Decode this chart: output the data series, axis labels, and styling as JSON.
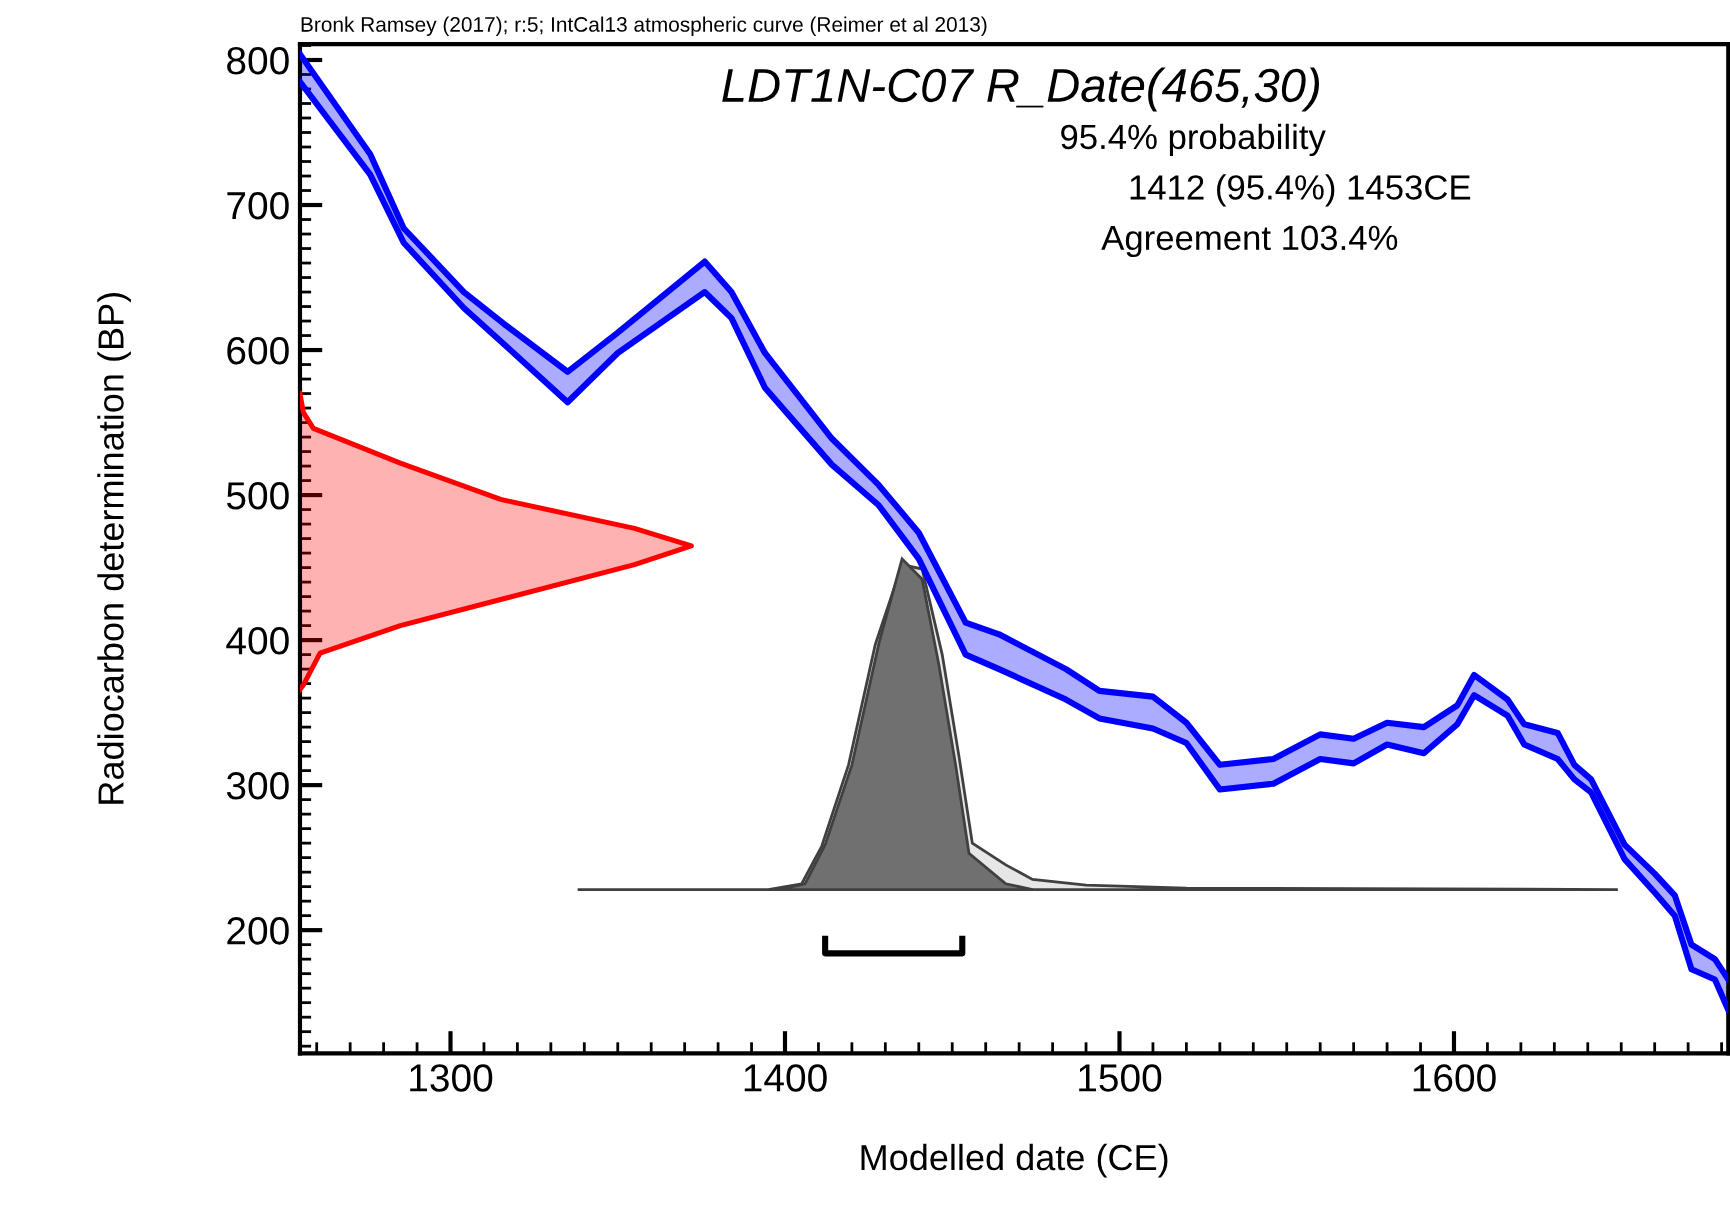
{
  "chart_data": {
    "type": "line",
    "title": "LDT1N-C07 R_Date(465,30)",
    "xlabel": "Modelled date (CE)",
    "ylabel": "Radiocarbon determination (BP)",
    "annotations": [
      "Bronk Ramsey (2017); r:5; IntCal13 atmospheric curve (Reimer et al 2013)",
      "95.4% probability",
      "1412 (95.4%) 1453CE",
      "Agreement 103.4%"
    ],
    "xlim": [
      1255,
      1682
    ],
    "ylim": [
      115,
      811
    ],
    "xticks": [
      1300,
      1400,
      1500,
      1600
    ],
    "yticks": [
      200,
      300,
      400,
      500,
      600,
      700,
      800
    ],
    "grid": false,
    "series": [
      {
        "type": "line",
        "color": "#0000ff",
        "x": [
          1255,
          1276,
          1286,
          1304,
          1316,
          1335,
          1350,
          1376,
          1384,
          1394,
          1414,
          1428,
          1440,
          1454,
          1464,
          1484,
          1494,
          1510,
          1520,
          1530,
          1546,
          1560,
          1570,
          1580,
          1591,
          1601,
          1606,
          1616,
          1621,
          1631,
          1636,
          1641,
          1651,
          1660,
          1666,
          1671,
          1678,
          1682
        ],
        "values": [
          804,
          735,
          684,
          640,
          618,
          585,
          612,
          661,
          640,
          598,
          539,
          507,
          474,
          412,
          404,
          380,
          365,
          361,
          343,
          314,
          318,
          335,
          332,
          343,
          340,
          355,
          376,
          359,
          342,
          336,
          314,
          304,
          259,
          239,
          224,
          190,
          180,
          166
        ],
        "upper": [
          804,
          735,
          684,
          640,
          618,
          585,
          612,
          661,
          640,
          598,
          539,
          507,
          474,
          412,
          404,
          380,
          365,
          361,
          343,
          314,
          318,
          335,
          332,
          343,
          340,
          355,
          376,
          359,
          342,
          336,
          314,
          304,
          259,
          239,
          224,
          190,
          180,
          166
        ],
        "lower": [
          785,
          721,
          674,
          629,
          604,
          564,
          598,
          640,
          622,
          574,
          521,
          493,
          456,
          390,
          380,
          359,
          346,
          339,
          329,
          297,
          301,
          318,
          315,
          328,
          322,
          342,
          362,
          348,
          328,
          318,
          304,
          295,
          249,
          226,
          210,
          173,
          166,
          145
        ]
      },
      {
        "type": "line",
        "color": "#0000ff",
        "x": [
          1255,
          1276,
          1286,
          1304,
          1316,
          1335,
          1350,
          1376,
          1384,
          1394,
          1414,
          1428,
          1440,
          1454,
          1464,
          1484,
          1494,
          1510,
          1520,
          1530,
          1546,
          1560,
          1570,
          1580,
          1591,
          1601,
          1606,
          1616,
          1621,
          1631,
          1636,
          1641,
          1651,
          1660,
          1666,
          1671,
          1678,
          1682
        ],
        "values": [
          785,
          721,
          674,
          629,
          604,
          564,
          598,
          640,
          622,
          574,
          521,
          493,
          456,
          390,
          380,
          359,
          346,
          339,
          329,
          297,
          301,
          318,
          315,
          328,
          322,
          342,
          362,
          348,
          328,
          318,
          304,
          295,
          249,
          226,
          210,
          173,
          166,
          145
        ]
      },
      {
        "type": "area",
        "color": "#ff0000",
        "x": [
          1255,
          1256,
          1261,
          1285,
          1315,
          1355,
          1372,
          1355,
          1315,
          1285,
          1259,
          1256,
          1255
        ],
        "values": [
          366,
          369,
          391,
          410,
          428,
          452,
          465,
          477,
          497,
          522,
          546,
          557,
          570
        ]
      },
      {
        "type": "area",
        "color": "#e6e6e6",
        "x": [
          1338,
          1395,
          1405,
          1411,
          1419,
          1427,
          1435,
          1441,
          1447,
          1452,
          1456,
          1466,
          1474,
          1490,
          1520,
          1649
        ],
        "values": [
          228,
          228,
          232,
          258,
          314,
          397,
          452,
          449,
          390,
          320,
          260,
          245,
          235,
          231,
          229,
          228
        ]
      },
      {
        "type": "area",
        "color": "#707070",
        "x": [
          1398,
          1406,
          1412,
          1420,
          1428,
          1435,
          1441,
          1446,
          1451,
          1455,
          1466,
          1474
        ],
        "values": [
          228,
          232,
          259,
          314,
          397,
          456,
          442,
          383,
          314,
          253,
          232,
          228
        ]
      },
      {
        "color": "#000000",
        "x": [
          1412,
          1412,
          1453,
          1453
        ],
        "values": [
          194,
          184,
          184,
          194
        ]
      }
    ]
  }
}
